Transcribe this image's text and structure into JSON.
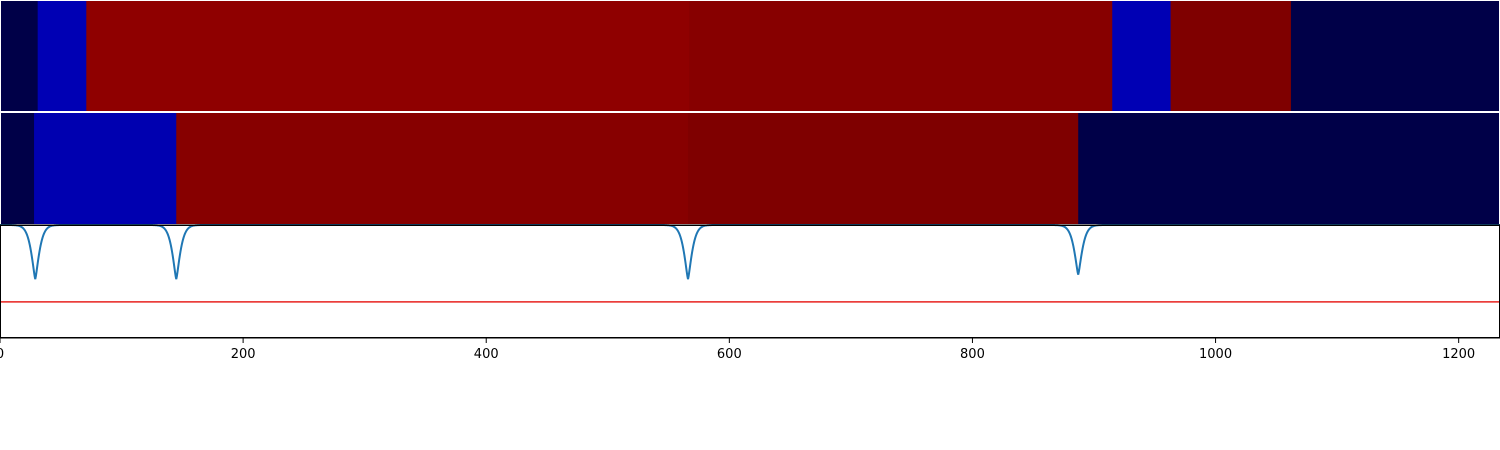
{
  "chart_data": [
    {
      "type": "heatmap",
      "xlim": [
        0,
        1234
      ],
      "segments": [
        {
          "start": 0,
          "end": 31,
          "color": "#000048"
        },
        {
          "start": 31,
          "end": 71,
          "color": "#0000b4"
        },
        {
          "start": 71,
          "end": 567,
          "color": "#8f0000"
        },
        {
          "start": 567,
          "end": 915,
          "color": "#870000"
        },
        {
          "start": 915,
          "end": 963,
          "color": "#0000b4"
        },
        {
          "start": 963,
          "end": 1062,
          "color": "#7f0000"
        },
        {
          "start": 1062,
          "end": 1234,
          "color": "#000048"
        }
      ]
    },
    {
      "type": "heatmap",
      "xlim": [
        0,
        1234
      ],
      "segments": [
        {
          "start": 0,
          "end": 28,
          "color": "#000048"
        },
        {
          "start": 28,
          "end": 145,
          "color": "#0000b0"
        },
        {
          "start": 145,
          "end": 566,
          "color": "#870000"
        },
        {
          "start": 566,
          "end": 887,
          "color": "#7f0000"
        },
        {
          "start": 887,
          "end": 1234,
          "color": "#000048"
        }
      ]
    },
    {
      "type": "line",
      "xlim": [
        0,
        1234
      ],
      "ylim": [
        0,
        1
      ],
      "xticks": [
        0,
        200,
        400,
        600,
        800,
        1000,
        1200
      ],
      "threshold": 0.32,
      "threshold_color": "#e8221f",
      "series_color": "#1f77b4",
      "baseline": 1.0,
      "dips": [
        {
          "center": 29,
          "min": 0.52
        },
        {
          "center": 145,
          "min": 0.52
        },
        {
          "center": 566,
          "min": 0.52
        },
        {
          "center": 887,
          "min": 0.56
        }
      ]
    }
  ]
}
